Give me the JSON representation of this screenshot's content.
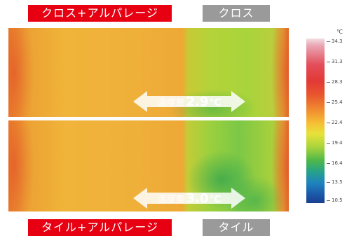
{
  "labels": {
    "top_left": "クロス+アルパレージ",
    "top_right": "クロス",
    "bottom_left": "タイル+アルパレージ",
    "bottom_right": "タイル"
  },
  "diff_top": {
    "prefix": "温度差",
    "value": "2.9",
    "unit": "℃"
  },
  "diff_bottom": {
    "prefix": "温度差",
    "value": "3.0",
    "unit": "℃"
  },
  "scale": {
    "unit": "℃",
    "ticks": [
      "34.3",
      "31.3",
      "28.3",
      "25.4",
      "22.4",
      "19.4",
      "16.4",
      "13.5",
      "10.5"
    ]
  },
  "colors": {
    "label_red": "#e60012",
    "label_gray": "#9a9a9a"
  }
}
